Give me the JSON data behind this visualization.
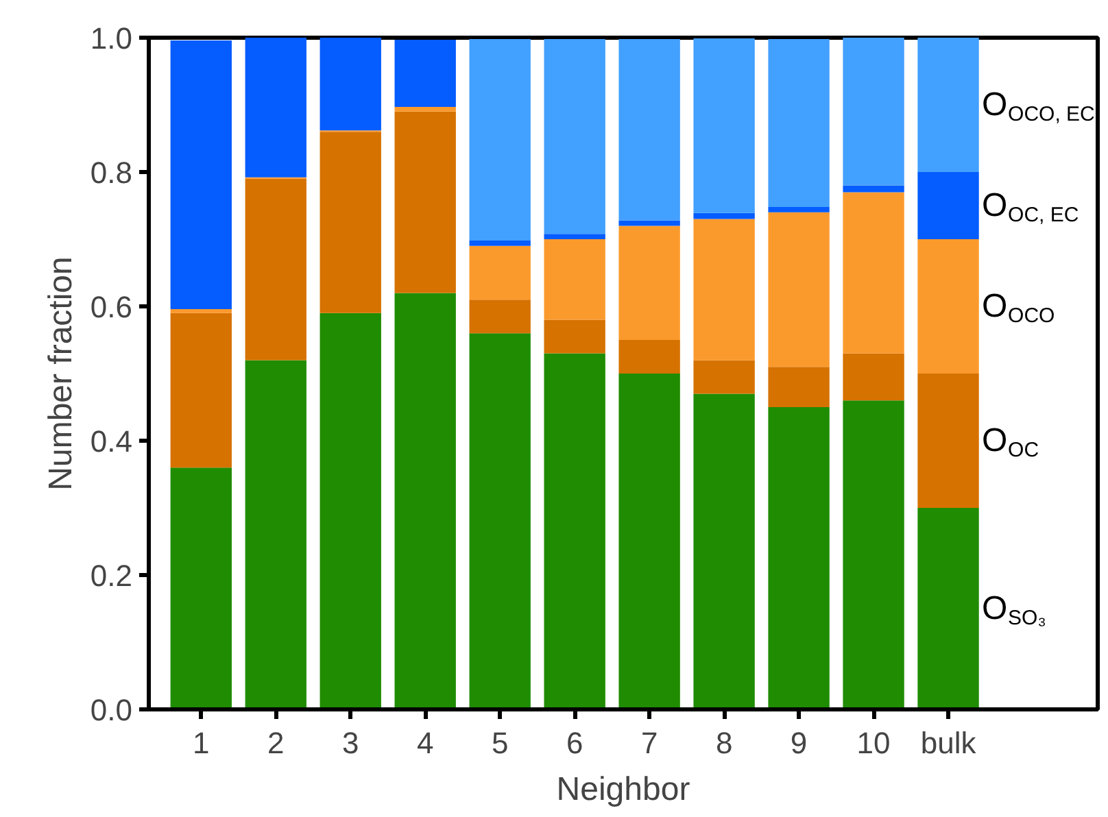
{
  "chart_data": {
    "type": "bar",
    "stacked": true,
    "xlabel": "Neighbor",
    "ylabel": "Number fraction",
    "categories": [
      "1",
      "2",
      "3",
      "4",
      "5",
      "6",
      "7",
      "8",
      "9",
      "10",
      "bulk"
    ],
    "ylim": [
      0,
      1.0
    ],
    "yticks": [
      {
        "value": 0,
        "label": "0.0"
      },
      0.2,
      0.4,
      0.6,
      0.8,
      {
        "value": 1,
        "label": "1.0"
      }
    ],
    "series": [
      {
        "name": "O$_{SO₃}$",
        "color": "#1f8c02",
        "values": [
          0.36,
          0.52,
          0.59,
          0.62,
          0.56,
          0.53,
          0.5,
          0.47,
          0.45,
          0.46,
          0.3
        ]
      },
      {
        "name": "O$_{OC}$",
        "color": "#d67200",
        "values": [
          0.23,
          0.27,
          0.27,
          0.27,
          0.05,
          0.05,
          0.05,
          0.05,
          0.06,
          0.07,
          0.2
        ]
      },
      {
        "name": "O$_{OCO}$",
        "color": "#fb9a2c",
        "values": [
          0.006,
          0.002,
          0.002,
          0.007,
          0.08,
          0.12,
          0.17,
          0.21,
          0.23,
          0.24,
          0.2
        ]
      },
      {
        "name": "O$_{OC, EC}$",
        "color": "#055cff",
        "values": [
          0.4,
          0.208,
          0.138,
          0.1,
          0.008,
          0.008,
          0.008,
          0.009,
          0.008,
          0.01,
          0.1
        ]
      },
      {
        "name": "O$_{OCO, EC}$",
        "color": "#42a0ff",
        "values": [
          0,
          0,
          0,
          0,
          0.3,
          0.29,
          0.27,
          0.26,
          0.25,
          0.22,
          0.2
        ]
      }
    ]
  }
}
